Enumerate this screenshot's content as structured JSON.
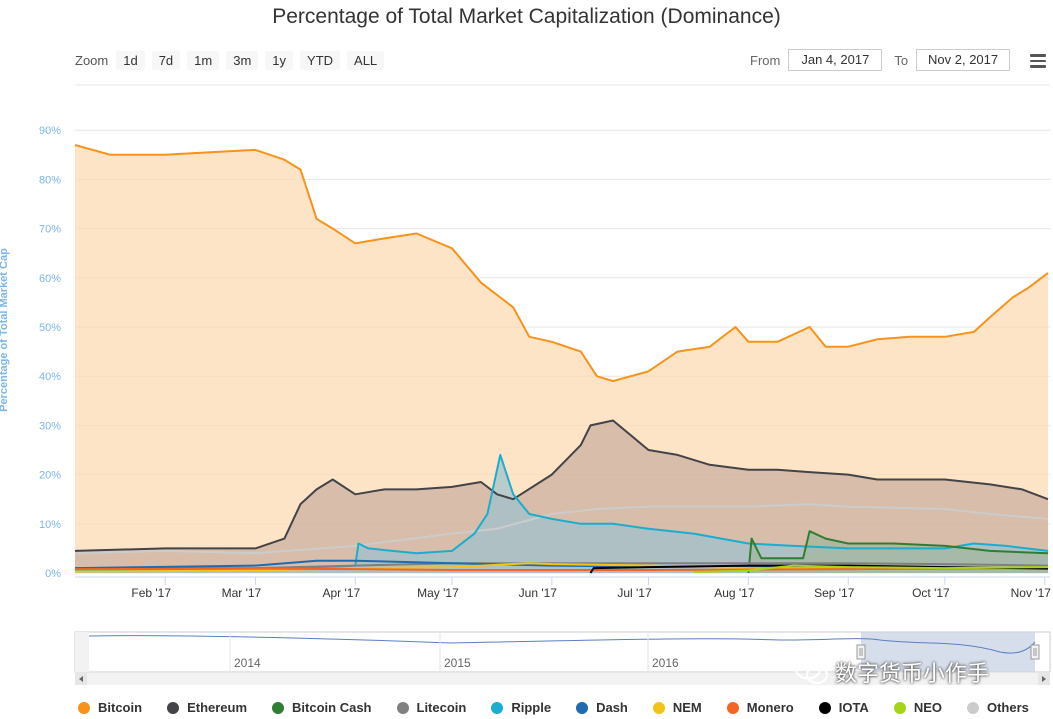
{
  "title": "Percentage of Total Market Capitalization (Dominance)",
  "zoom": {
    "label": "Zoom",
    "buttons": [
      "1d",
      "7d",
      "1m",
      "3m",
      "1y",
      "YTD",
      "ALL"
    ]
  },
  "range": {
    "from_label": "From",
    "from_value": "Jan 4, 2017",
    "to_label": "To",
    "to_value": "Nov 2, 2017"
  },
  "watermark_text": "数字货币小作手",
  "chart_data": {
    "type": "area",
    "title": "Percentage of Total Market Capitalization (Dominance)",
    "ylabel": "Percentage of Total Market Cap",
    "ylim": [
      0,
      90
    ],
    "yticks": [
      "0%",
      "10%",
      "20%",
      "30%",
      "40%",
      "50%",
      "60%",
      "70%",
      "80%",
      "90%"
    ],
    "xlim": [
      "2017-01-04",
      "2017-11-02"
    ],
    "xticks": [
      {
        "date": "2017-02-01",
        "label": "Feb '17"
      },
      {
        "date": "2017-03-01",
        "label": "Mar '17"
      },
      {
        "date": "2017-04-01",
        "label": "Apr '17"
      },
      {
        "date": "2017-05-01",
        "label": "May '17"
      },
      {
        "date": "2017-06-01",
        "label": "Jun '17"
      },
      {
        "date": "2017-07-01",
        "label": "Jul '17"
      },
      {
        "date": "2017-08-01",
        "label": "Aug '17"
      },
      {
        "date": "2017-09-01",
        "label": "Sep '17"
      },
      {
        "date": "2017-10-01",
        "label": "Oct '17"
      },
      {
        "date": "2017-11-01",
        "label": "Nov '17"
      }
    ],
    "navigator_labels": [
      "2014",
      "2015",
      "2016"
    ],
    "grid": true,
    "legend_position": "bottom",
    "series": [
      {
        "name": "Bitcoin",
        "color": "#f7931a",
        "fill": "#fdd9b0",
        "points": [
          [
            "2017-01-04",
            87
          ],
          [
            "2017-01-15",
            85
          ],
          [
            "2017-02-01",
            85
          ],
          [
            "2017-02-15",
            85.5
          ],
          [
            "2017-03-01",
            86
          ],
          [
            "2017-03-10",
            84
          ],
          [
            "2017-03-15",
            82
          ],
          [
            "2017-03-20",
            72
          ],
          [
            "2017-03-25",
            70
          ],
          [
            "2017-04-01",
            67
          ],
          [
            "2017-04-10",
            68
          ],
          [
            "2017-04-20",
            69
          ],
          [
            "2017-05-01",
            66
          ],
          [
            "2017-05-10",
            59
          ],
          [
            "2017-05-20",
            54
          ],
          [
            "2017-05-25",
            48
          ],
          [
            "2017-06-01",
            47
          ],
          [
            "2017-06-10",
            45
          ],
          [
            "2017-06-15",
            40
          ],
          [
            "2017-06-20",
            39
          ],
          [
            "2017-07-01",
            41
          ],
          [
            "2017-07-10",
            45
          ],
          [
            "2017-07-20",
            46
          ],
          [
            "2017-07-28",
            50
          ],
          [
            "2017-08-01",
            47
          ],
          [
            "2017-08-10",
            47
          ],
          [
            "2017-08-20",
            50
          ],
          [
            "2017-08-25",
            46
          ],
          [
            "2017-09-01",
            46
          ],
          [
            "2017-09-10",
            47.5
          ],
          [
            "2017-09-20",
            48
          ],
          [
            "2017-10-01",
            48
          ],
          [
            "2017-10-10",
            49
          ],
          [
            "2017-10-15",
            52
          ],
          [
            "2017-10-22",
            56
          ],
          [
            "2017-10-27",
            58
          ],
          [
            "2017-11-02",
            61
          ]
        ]
      },
      {
        "name": "Ethereum",
        "color": "#434348",
        "fill": "#c7ada0",
        "points": [
          [
            "2017-01-04",
            4.5
          ],
          [
            "2017-02-01",
            5
          ],
          [
            "2017-03-01",
            5
          ],
          [
            "2017-03-10",
            7
          ],
          [
            "2017-03-15",
            14
          ],
          [
            "2017-03-20",
            17
          ],
          [
            "2017-03-25",
            19
          ],
          [
            "2017-04-01",
            16
          ],
          [
            "2017-04-10",
            17
          ],
          [
            "2017-04-20",
            17
          ],
          [
            "2017-05-01",
            17.5
          ],
          [
            "2017-05-10",
            18.5
          ],
          [
            "2017-05-15",
            16
          ],
          [
            "2017-05-20",
            15
          ],
          [
            "2017-06-01",
            20
          ],
          [
            "2017-06-10",
            26
          ],
          [
            "2017-06-13",
            30
          ],
          [
            "2017-06-20",
            31
          ],
          [
            "2017-07-01",
            25
          ],
          [
            "2017-07-10",
            24
          ],
          [
            "2017-07-20",
            22
          ],
          [
            "2017-08-01",
            21
          ],
          [
            "2017-08-10",
            21
          ],
          [
            "2017-08-20",
            20.5
          ],
          [
            "2017-09-01",
            20
          ],
          [
            "2017-09-10",
            19
          ],
          [
            "2017-09-20",
            19
          ],
          [
            "2017-10-01",
            19
          ],
          [
            "2017-10-15",
            18
          ],
          [
            "2017-10-25",
            17
          ],
          [
            "2017-11-02",
            15
          ]
        ]
      },
      {
        "name": "Others",
        "color": "#cccccc",
        "fill": "none",
        "points": [
          [
            "2017-01-04",
            4
          ],
          [
            "2017-02-01",
            4.5
          ],
          [
            "2017-03-01",
            4
          ],
          [
            "2017-04-01",
            5.5
          ],
          [
            "2017-05-01",
            8
          ],
          [
            "2017-05-15",
            9
          ],
          [
            "2017-06-01",
            12
          ],
          [
            "2017-06-15",
            13
          ],
          [
            "2017-07-01",
            13.5
          ],
          [
            "2017-08-01",
            13.5
          ],
          [
            "2017-08-20",
            14
          ],
          [
            "2017-09-01",
            13.5
          ],
          [
            "2017-10-01",
            13
          ],
          [
            "2017-10-15",
            12
          ],
          [
            "2017-11-02",
            11
          ]
        ]
      },
      {
        "name": "Ripple",
        "color": "#1aadce",
        "fill": "#9fc1cf",
        "points": [
          [
            "2017-01-04",
            0.5
          ],
          [
            "2017-02-01",
            0.6
          ],
          [
            "2017-03-01",
            0.6
          ],
          [
            "2017-03-20",
            1
          ],
          [
            "2017-04-01",
            1.5
          ],
          [
            "2017-04-02",
            6
          ],
          [
            "2017-04-05",
            5
          ],
          [
            "2017-04-20",
            4
          ],
          [
            "2017-05-01",
            4.5
          ],
          [
            "2017-05-08",
            8
          ],
          [
            "2017-05-12",
            12
          ],
          [
            "2017-05-16",
            24
          ],
          [
            "2017-05-20",
            16
          ],
          [
            "2017-05-25",
            12
          ],
          [
            "2017-06-01",
            11
          ],
          [
            "2017-06-10",
            10
          ],
          [
            "2017-06-20",
            10
          ],
          [
            "2017-07-01",
            9
          ],
          [
            "2017-07-15",
            8
          ],
          [
            "2017-08-01",
            6
          ],
          [
            "2017-08-15",
            5.5
          ],
          [
            "2017-09-01",
            5
          ],
          [
            "2017-09-20",
            5
          ],
          [
            "2017-10-01",
            5
          ],
          [
            "2017-10-10",
            6
          ],
          [
            "2017-10-20",
            5.5
          ],
          [
            "2017-11-02",
            4.5
          ]
        ]
      },
      {
        "name": "Bitcoin Cash",
        "color": "#2f7d32",
        "fill": "#a4b69c",
        "points": [
          [
            "2017-08-01",
            0
          ],
          [
            "2017-08-02",
            7
          ],
          [
            "2017-08-05",
            3
          ],
          [
            "2017-08-10",
            3
          ],
          [
            "2017-08-18",
            3
          ],
          [
            "2017-08-20",
            8.5
          ],
          [
            "2017-08-25",
            7
          ],
          [
            "2017-09-01",
            6
          ],
          [
            "2017-09-15",
            6
          ],
          [
            "2017-10-01",
            5.5
          ],
          [
            "2017-10-15",
            4.5
          ],
          [
            "2017-11-02",
            4
          ]
        ]
      },
      {
        "name": "Litecoin",
        "color": "#808080",
        "fill": "none",
        "points": [
          [
            "2017-01-04",
            1
          ],
          [
            "2017-03-01",
            1
          ],
          [
            "2017-04-01",
            1.5
          ],
          [
            "2017-05-01",
            2
          ],
          [
            "2017-06-01",
            2
          ],
          [
            "2017-07-01",
            2
          ],
          [
            "2017-08-01",
            2
          ],
          [
            "2017-09-01",
            2
          ],
          [
            "2017-10-01",
            1.8
          ],
          [
            "2017-11-02",
            1.5
          ]
        ]
      },
      {
        "name": "Dash",
        "color": "#1f6bb0",
        "fill": "none",
        "points": [
          [
            "2017-01-04",
            1
          ],
          [
            "2017-03-01",
            1.5
          ],
          [
            "2017-03-20",
            2.5
          ],
          [
            "2017-04-01",
            2.5
          ],
          [
            "2017-05-01",
            2
          ],
          [
            "2017-06-01",
            1.5
          ],
          [
            "2017-07-01",
            1.3
          ],
          [
            "2017-08-01",
            1.3
          ],
          [
            "2017-09-01",
            1.2
          ],
          [
            "2017-10-01",
            1.1
          ],
          [
            "2017-11-02",
            1
          ]
        ]
      },
      {
        "name": "NEM",
        "color": "#f0c419",
        "fill": "none",
        "points": [
          [
            "2017-01-04",
            0.3
          ],
          [
            "2017-03-01",
            0.5
          ],
          [
            "2017-04-01",
            1
          ],
          [
            "2017-05-01",
            1.2
          ],
          [
            "2017-05-25",
            2
          ],
          [
            "2017-06-01",
            1.8
          ],
          [
            "2017-07-01",
            1.5
          ],
          [
            "2017-08-01",
            1
          ],
          [
            "2017-09-01",
            1
          ],
          [
            "2017-10-01",
            1
          ],
          [
            "2017-11-02",
            0.9
          ]
        ]
      },
      {
        "name": "Monero",
        "color": "#f26522",
        "fill": "none",
        "points": [
          [
            "2017-01-04",
            0.8
          ],
          [
            "2017-03-01",
            0.9
          ],
          [
            "2017-04-01",
            0.8
          ],
          [
            "2017-05-01",
            0.6
          ],
          [
            "2017-06-01",
            0.6
          ],
          [
            "2017-07-01",
            0.6
          ],
          [
            "2017-08-01",
            0.7
          ],
          [
            "2017-09-01",
            0.8
          ],
          [
            "2017-10-01",
            0.9
          ],
          [
            "2017-11-02",
            1
          ]
        ]
      },
      {
        "name": "IOTA",
        "color": "#000000",
        "fill": "none",
        "points": [
          [
            "2017-06-13",
            0
          ],
          [
            "2017-06-14",
            1
          ],
          [
            "2017-07-01",
            1.2
          ],
          [
            "2017-08-01",
            1.5
          ],
          [
            "2017-09-01",
            1.5
          ],
          [
            "2017-10-01",
            1.2
          ],
          [
            "2017-11-02",
            0.9
          ]
        ]
      },
      {
        "name": "NEO",
        "color": "#a6d419",
        "fill": "none",
        "points": [
          [
            "2017-07-15",
            0.2
          ],
          [
            "2017-08-01",
            0.5
          ],
          [
            "2017-08-15",
            1.5
          ],
          [
            "2017-09-01",
            1.2
          ],
          [
            "2017-10-01",
            1
          ],
          [
            "2017-11-02",
            1.2
          ]
        ]
      }
    ]
  }
}
